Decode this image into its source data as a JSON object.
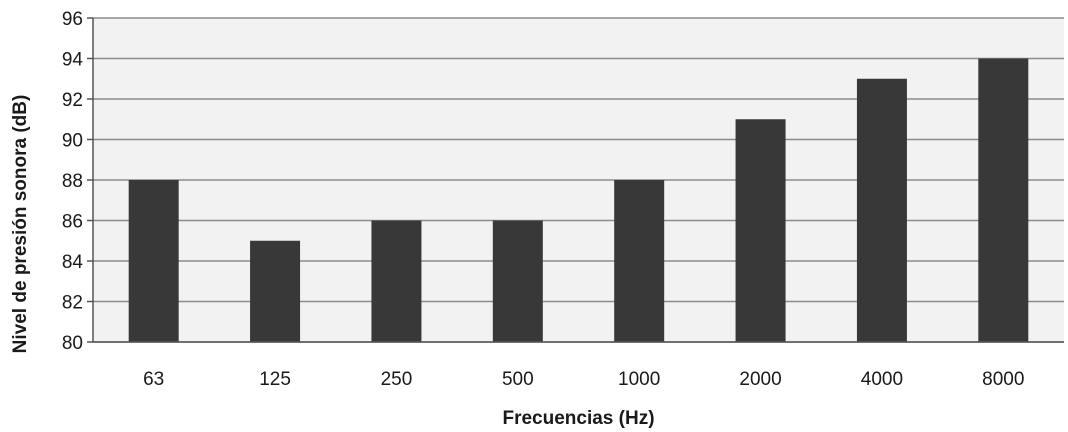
{
  "chart_data": {
    "type": "bar",
    "title": "",
    "xlabel": "Frecuencias (Hz)",
    "ylabel": "Nivel de presión sonora (dB)",
    "categories": [
      "63",
      "125",
      "250",
      "500",
      "1000",
      "2000",
      "4000",
      "8000"
    ],
    "values": [
      88,
      85,
      86,
      86,
      88,
      91,
      93,
      94
    ],
    "ylim": [
      80,
      96
    ],
    "yticks": [
      "80",
      "82",
      "84",
      "86",
      "88",
      "90",
      "92",
      "94",
      "96"
    ],
    "grid": true,
    "legend": "none",
    "colors": {
      "bar": "#383838",
      "plot_background": "#f2f2f2",
      "grid": "#8c8c8c",
      "axis": "#555555"
    }
  }
}
